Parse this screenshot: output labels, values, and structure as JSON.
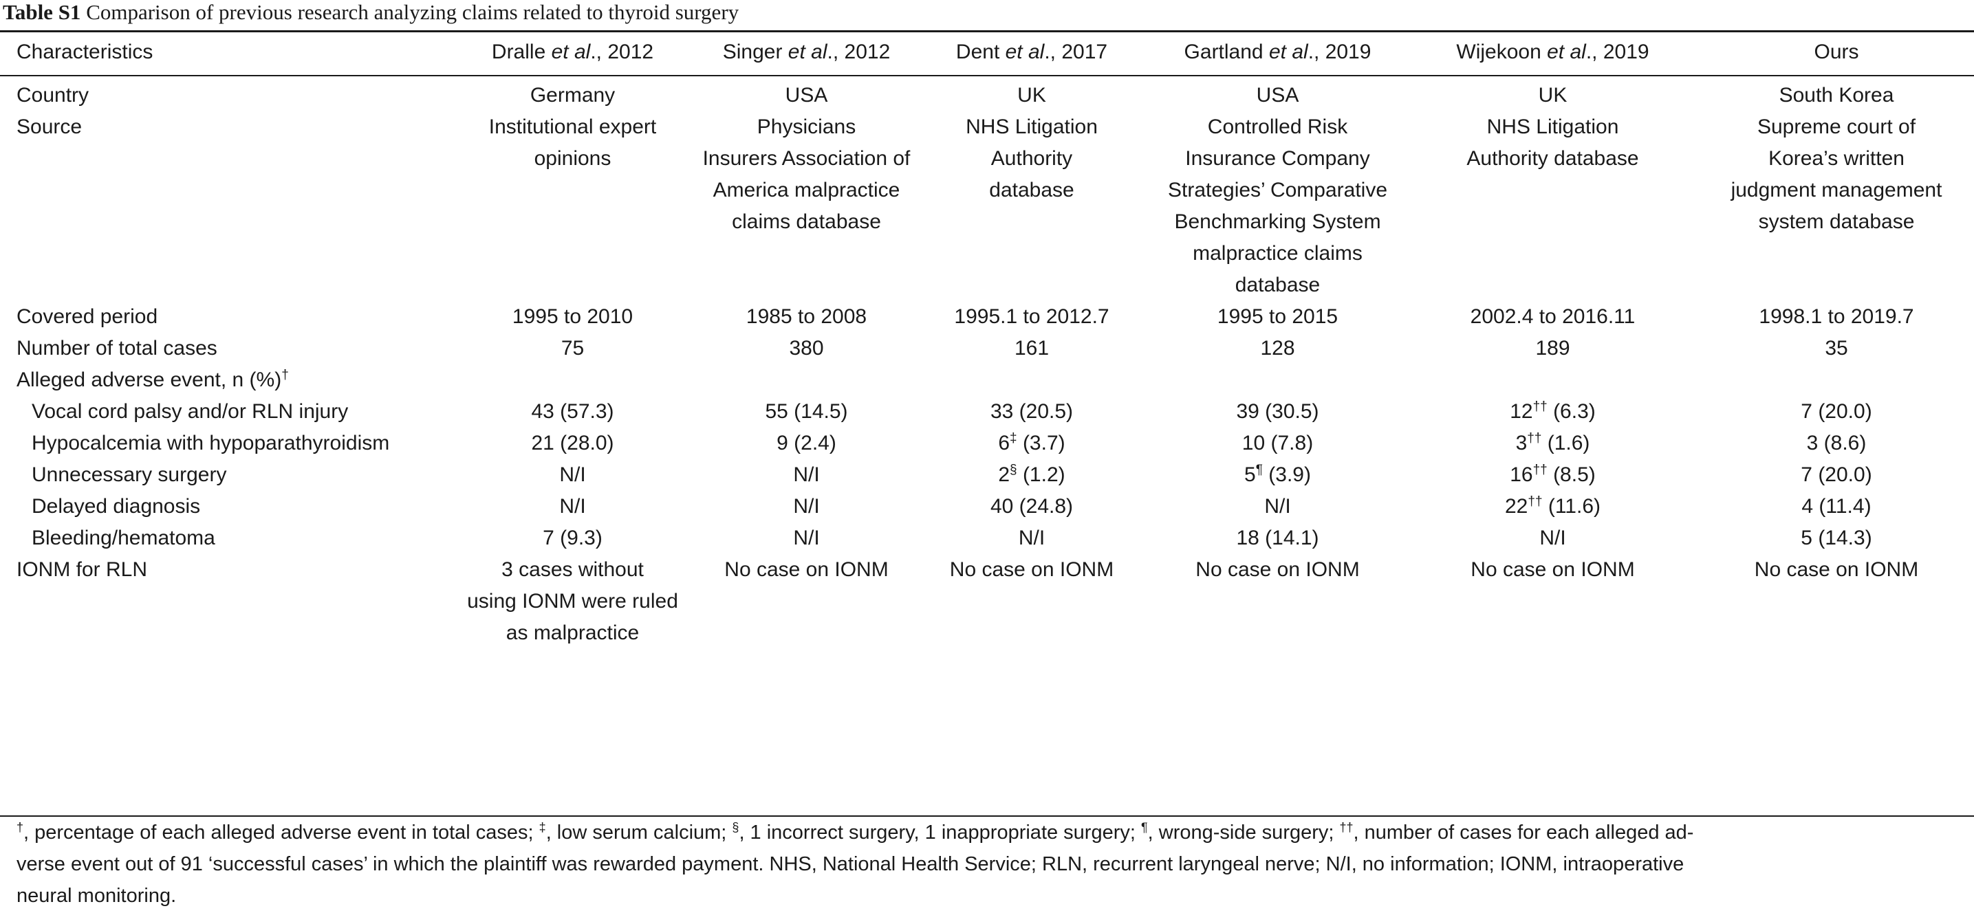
{
  "caption": {
    "label": "Table S1",
    "text": "Comparison of previous research analyzing claims related to thyroid surgery"
  },
  "header": {
    "characteristics": "Characteristics",
    "studies": [
      {
        "author": "Dralle",
        "etal": "et al",
        "year": "., 2012"
      },
      {
        "author": "Singer",
        "etal": "et al",
        "year": "., 2012"
      },
      {
        "author": "Dent",
        "etal": "et al",
        "year": "., 2017"
      },
      {
        "author": "Gartland",
        "etal": "et al",
        "year": "., 2019"
      },
      {
        "author": "Wijekoon",
        "etal": "et al",
        "year": "., 2019"
      }
    ],
    "ours": "Ours"
  },
  "rows": {
    "country": {
      "label": "Country",
      "values": [
        "Germany",
        "USA",
        "UK",
        "USA",
        "UK",
        "South Korea"
      ]
    },
    "source": {
      "label": "Source",
      "values": [
        [
          "Institutional expert",
          "opinions"
        ],
        [
          "Physicians",
          "Insurers Association of",
          "America malpractice",
          "claims database"
        ],
        [
          "NHS Litigation",
          "Authority",
          "database"
        ],
        [
          "Controlled Risk",
          "Insurance Company",
          "Strategies’ Comparative",
          "Benchmarking System",
          "malpractice claims",
          "database"
        ],
        [
          "NHS Litigation",
          "Authority database"
        ],
        [
          "Supreme court of",
          "Korea’s written",
          "judgment management",
          "system database"
        ]
      ]
    },
    "period": {
      "label": "Covered period",
      "values": [
        "1995 to 2010",
        "1985 to 2008",
        "1995.1 to 2012.7",
        "1995 to 2015",
        "2002.4 to 2016.11",
        "1998.1 to 2019.7"
      ]
    },
    "total": {
      "label": "Number of total cases",
      "values": [
        "75",
        "380",
        "161",
        "128",
        "189",
        "35"
      ]
    },
    "alleged": {
      "label": "Alleged adverse event, n (%)",
      "mark": "†"
    },
    "vocal": {
      "label": "Vocal cord palsy and/or RLN injury",
      "values": [
        {
          "n": "43",
          "m": "",
          "p": " (57.3)"
        },
        {
          "n": "55",
          "m": "",
          "p": " (14.5)"
        },
        {
          "n": "33",
          "m": "",
          "p": " (20.5)"
        },
        {
          "n": "39",
          "m": "",
          "p": " (30.5)"
        },
        {
          "n": "12",
          "m": "††",
          "p": " (6.3)"
        },
        {
          "n": "7",
          "m": "",
          "p": " (20.0)"
        }
      ]
    },
    "hypo": {
      "label": "Hypocalcemia with hypoparathyroidism",
      "values": [
        {
          "n": "21",
          "m": "",
          "p": " (28.0)"
        },
        {
          "n": "9",
          "m": "",
          "p": " (2.4)"
        },
        {
          "n": "6",
          "m": "‡",
          "p": " (3.7)"
        },
        {
          "n": "10",
          "m": "",
          "p": " (7.8)"
        },
        {
          "n": "3",
          "m": "††",
          "p": " (1.6)"
        },
        {
          "n": "3",
          "m": "",
          "p": " (8.6)"
        }
      ]
    },
    "unnecessary": {
      "label": "Unnecessary surgery",
      "values": [
        {
          "n": "N/I",
          "m": "",
          "p": ""
        },
        {
          "n": "N/I",
          "m": "",
          "p": ""
        },
        {
          "n": "2",
          "m": "§",
          "p": " (1.2)"
        },
        {
          "n": "5",
          "m": "¶",
          "p": " (3.9)"
        },
        {
          "n": "16",
          "m": "††",
          "p": " (8.5)"
        },
        {
          "n": "7",
          "m": "",
          "p": " (20.0)"
        }
      ]
    },
    "delayed": {
      "label": "Delayed diagnosis",
      "values": [
        {
          "n": "N/I",
          "m": "",
          "p": ""
        },
        {
          "n": "N/I",
          "m": "",
          "p": ""
        },
        {
          "n": "40",
          "m": "",
          "p": " (24.8)"
        },
        {
          "n": "N/I",
          "m": "",
          "p": ""
        },
        {
          "n": "22",
          "m": "††",
          "p": " (11.6)"
        },
        {
          "n": "4",
          "m": "",
          "p": " (11.4)"
        }
      ]
    },
    "bleeding": {
      "label": "Bleeding/hematoma",
      "values": [
        {
          "n": "7",
          "m": "",
          "p": " (9.3)"
        },
        {
          "n": "N/I",
          "m": "",
          "p": ""
        },
        {
          "n": "N/I",
          "m": "",
          "p": ""
        },
        {
          "n": "18",
          "m": "",
          "p": " (14.1)"
        },
        {
          "n": "N/I",
          "m": "",
          "p": ""
        },
        {
          "n": "5",
          "m": "",
          "p": " (14.3)"
        }
      ]
    },
    "ionm": {
      "label": "IONM for RLN",
      "values": [
        [
          "3 cases without",
          "using IONM were ruled",
          "as malpractice"
        ],
        [
          "No case on IONM"
        ],
        [
          "No case on IONM"
        ],
        [
          "No case on IONM"
        ],
        [
          "No case on IONM"
        ],
        [
          "No case on IONM"
        ]
      ]
    }
  },
  "footnote": {
    "m1": "†",
    "t1": ", percentage of each alleged adverse event in total cases; ",
    "m2": "‡",
    "t2": ", low serum calcium; ",
    "m3": "§",
    "t3": ", 1 incorrect surgery, 1 inappropriate surgery; ",
    "m4": "¶",
    "t4": ", wrong-side surgery; ",
    "m5": "††",
    "t5": ", number of cases for each alleged ad-",
    "line2": "verse event out of 91 ‘successful cases’ in which the plaintiff was rewarded payment. NHS, National Health Service; RLN, recurrent laryngeal nerve; N/I, no information; IONM, intraoperative",
    "line3": "neural monitoring."
  }
}
